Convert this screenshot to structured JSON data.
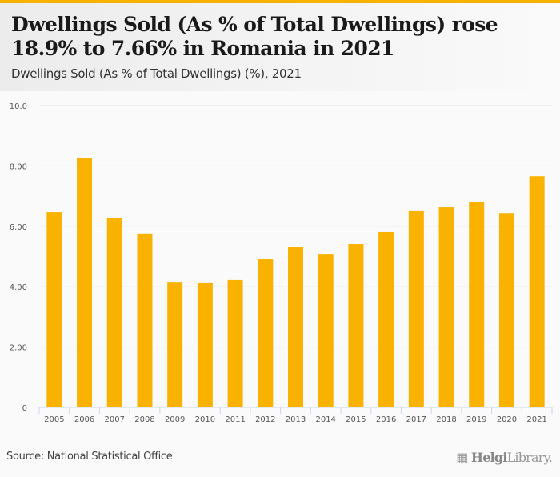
{
  "header": {
    "title": "Dwellings Sold (As % of Total Dwellings) rose 18.9% to 7.66% in Romania in 2021",
    "subtitle": "Dwellings Sold (As % of Total Dwellings) (%), 2021"
  },
  "footer": {
    "source": "Source: National Statistical Office",
    "logo_bold": "Helgi",
    "logo_light": "Library."
  },
  "colors": {
    "bar": "#f9b200",
    "accent": "#f9b200"
  },
  "chart_data": {
    "type": "bar",
    "title": "Dwellings Sold (As % of Total Dwellings) (%), 2021",
    "xlabel": "",
    "ylabel": "",
    "categories": [
      "2005",
      "2006",
      "2007",
      "2008",
      "2009",
      "2010",
      "2011",
      "2012",
      "2013",
      "2014",
      "2015",
      "2016",
      "2017",
      "2018",
      "2019",
      "2020",
      "2021"
    ],
    "values": [
      6.47,
      8.26,
      6.26,
      5.76,
      4.16,
      4.14,
      4.22,
      4.93,
      5.33,
      5.09,
      5.41,
      5.81,
      6.5,
      6.63,
      6.79,
      6.44,
      7.66
    ],
    "ylim": [
      0,
      10
    ],
    "yticks": [
      0,
      2,
      4,
      6,
      8,
      10
    ],
    "ytick_labels": [
      "0",
      "2.00",
      "4.00",
      "6.00",
      "8.00",
      "10.0"
    ],
    "grid": true,
    "legend": "none"
  }
}
